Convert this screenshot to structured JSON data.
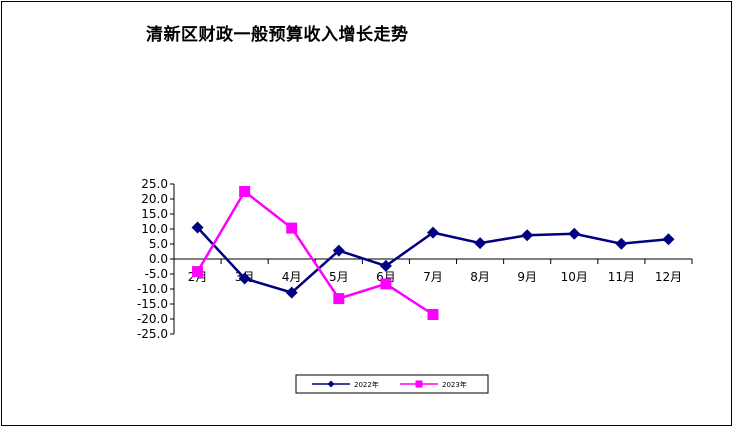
{
  "chart_data": {
    "type": "line",
    "title": "清新区财政一般预算收入增长走势",
    "xlabel": "",
    "ylabel": "",
    "categories": [
      "2月",
      "3月",
      "4月",
      "5月",
      "6月",
      "7月",
      "8月",
      "9月",
      "10月",
      "11月",
      "12月"
    ],
    "ylim": [
      -25,
      25
    ],
    "yticks": [
      25,
      20,
      15,
      10,
      5,
      0,
      -5,
      -10,
      -15,
      -20,
      -25
    ],
    "ytick_labels": [
      "25.0",
      "20.0",
      "15.0",
      "10.0",
      "5.0",
      "0.0",
      "-5.0",
      "-10.0",
      "-15.0",
      "-20.0",
      "-25.0"
    ],
    "grid": false,
    "legend_position": "bottom",
    "series": [
      {
        "name": "2022年",
        "color": "#000080",
        "marker": "diamond",
        "values": [
          10.5,
          -6.5,
          -11.2,
          2.8,
          -2.3,
          8.8,
          5.3,
          7.9,
          8.4,
          5.1,
          6.6
        ]
      },
      {
        "name": "2023年",
        "color": "#FF00FF",
        "marker": "square",
        "values": [
          -4.2,
          22.5,
          10.3,
          -13.2,
          -8.3,
          -18.5,
          null,
          null,
          null,
          null,
          null
        ]
      }
    ]
  }
}
